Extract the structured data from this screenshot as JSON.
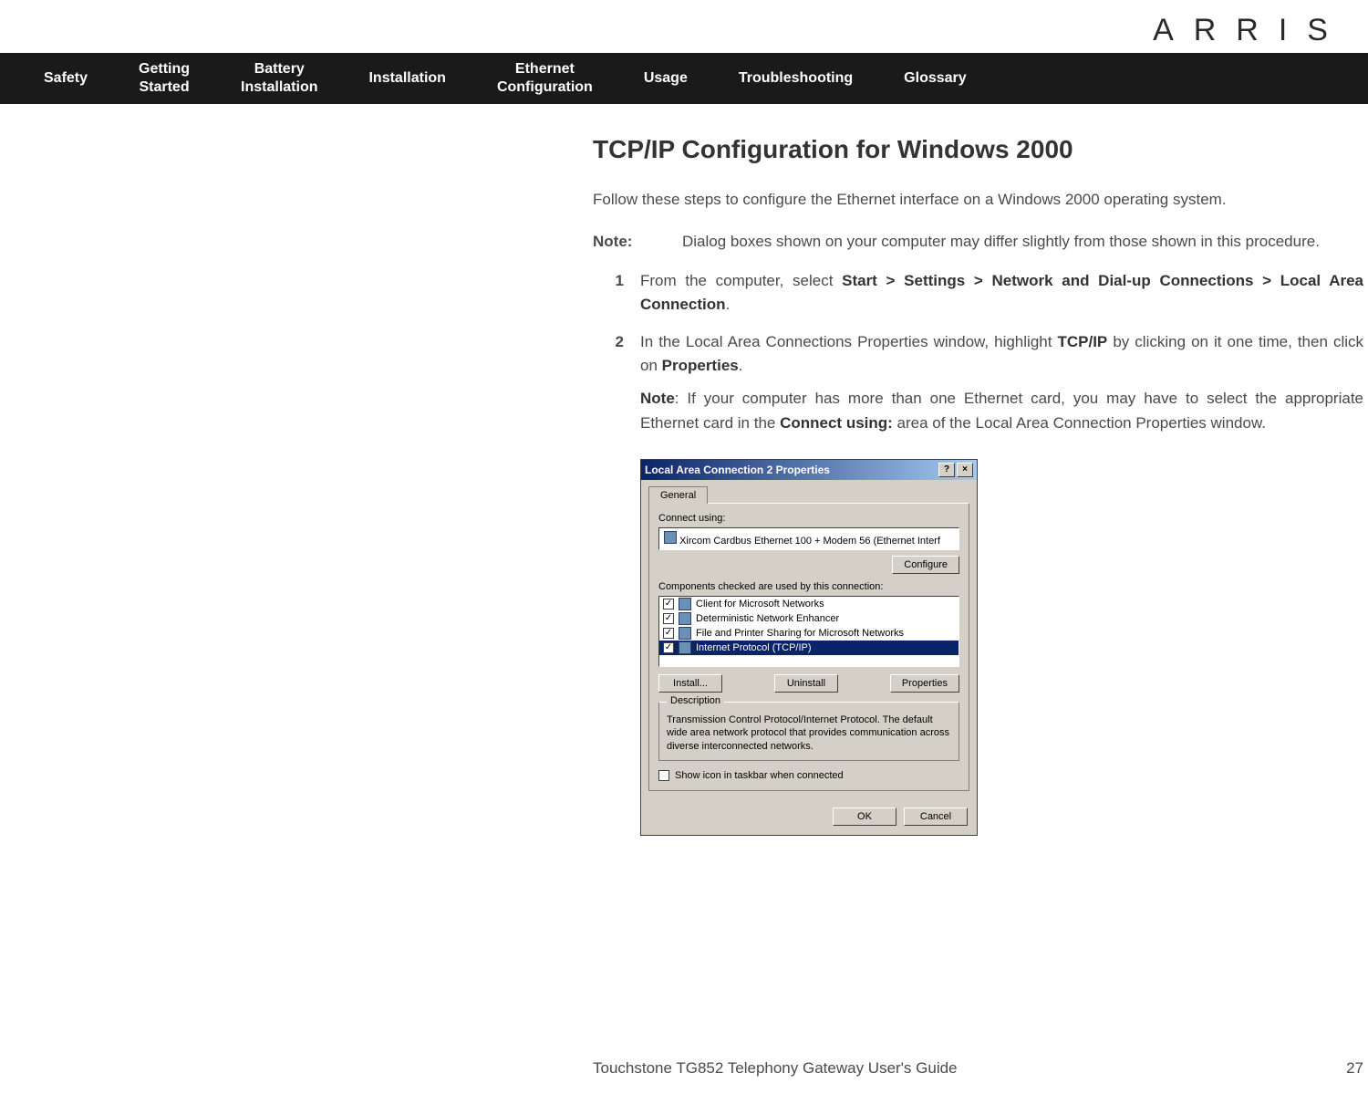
{
  "brand": "ARRIS",
  "nav": {
    "items": [
      "Safety",
      "Getting\nStarted",
      "Battery\nInstallation",
      "Installation",
      "Ethernet\nConfiguration",
      "Usage",
      "Troubleshooting",
      "Glossary"
    ]
  },
  "page": {
    "title": "TCP/IP Configuration for Windows 2000",
    "intro": "Follow these steps to configure the Ethernet interface on a Windows 2000 operating system.",
    "note_label": "Note:",
    "note_text": "Dialog boxes shown on your computer may differ slightly from those shown in this procedure.",
    "steps": [
      {
        "num": "1",
        "html": "From the computer, select <b>Start &gt; Settings &gt; Network and Dial-up Connections &gt; Local Area Connection</b>."
      },
      {
        "num": "2",
        "html": "In the Local Area Connections Properties window, highlight <b>TCP/IP</b> by clicking on it one time, then click on <b>Properties</b>.",
        "sub_html": "<b>Note</b>: If your computer has more than one Ethernet card, you may have to select the appropriate Ethernet card in the <b>Connect using:</b> area of the Local Area Connection Properties window."
      }
    ]
  },
  "dialog": {
    "title": "Local Area Connection 2 Properties",
    "tab": "General",
    "connect_label": "Connect using:",
    "adapter": "Xircom Cardbus Ethernet 100 + Modem 56 (Ethernet Interf",
    "configure_btn": "Configure",
    "components_label": "Components checked are used by this connection:",
    "components": [
      {
        "label": "Client for Microsoft Networks",
        "selected": false
      },
      {
        "label": "Deterministic Network Enhancer",
        "selected": false
      },
      {
        "label": "File and Printer Sharing for Microsoft Networks",
        "selected": false
      },
      {
        "label": "Internet Protocol (TCP/IP)",
        "selected": true
      }
    ],
    "install_btn": "Install...",
    "uninstall_btn": "Uninstall",
    "properties_btn": "Properties",
    "desc_group": "Description",
    "desc_text": "Transmission Control Protocol/Internet Protocol. The default wide area network protocol that provides communication across diverse interconnected networks.",
    "show_icon": "Show icon in taskbar when connected",
    "ok_btn": "OK",
    "cancel_btn": "Cancel"
  },
  "footer": {
    "guide": "Touchstone TG852 Telephony Gateway User's Guide",
    "page_num": "27"
  }
}
